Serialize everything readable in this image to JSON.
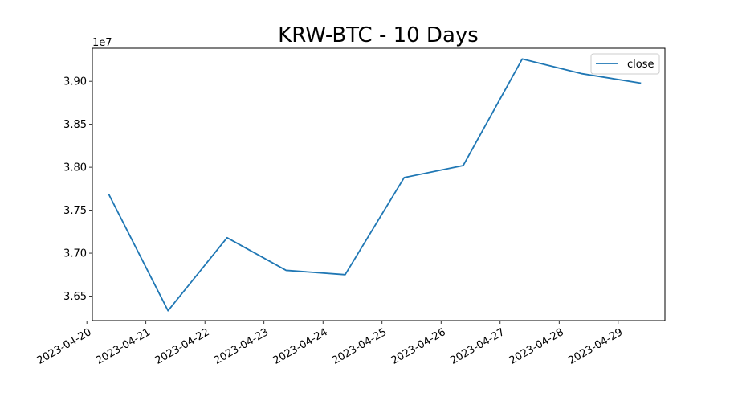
{
  "chart_data": {
    "type": "line",
    "title": "KRW-BTC - 10 Days",
    "xlabel": "",
    "ylabel": "",
    "y_offset_label": "1e7",
    "x_tick_labels": [
      "2023-04-20",
      "2023-04-21",
      "2023-04-22",
      "2023-04-23",
      "2023-04-24",
      "2023-04-25",
      "2023-04-26",
      "2023-04-27",
      "2023-04-28",
      "2023-04-29"
    ],
    "y_tick_labels": [
      "3.65",
      "3.70",
      "3.75",
      "3.80",
      "3.85",
      "3.90"
    ],
    "y_ticks": [
      36500000,
      37000000,
      37500000,
      38000000,
      38500000,
      39000000
    ],
    "xlim": [
      "2023-04-20T02:14",
      "2023-04-29T19:00"
    ],
    "ylim": [
      36215000,
      39385000
    ],
    "series": [
      {
        "name": "close",
        "color": "#1f77b4",
        "x": [
          "2023-04-20T09:00",
          "2023-04-21T09:00",
          "2023-04-22T09:00",
          "2023-04-23T09:00",
          "2023-04-24T09:00",
          "2023-04-25T09:00",
          "2023-04-26T09:00",
          "2023-04-27T09:00",
          "2023-04-28T09:00",
          "2023-04-29T09:00"
        ],
        "values": [
          37680000,
          36330000,
          37180000,
          36800000,
          36750000,
          37880000,
          38020000,
          39260000,
          39090000,
          38980000
        ]
      }
    ],
    "legend": "top-right",
    "grid": false
  }
}
